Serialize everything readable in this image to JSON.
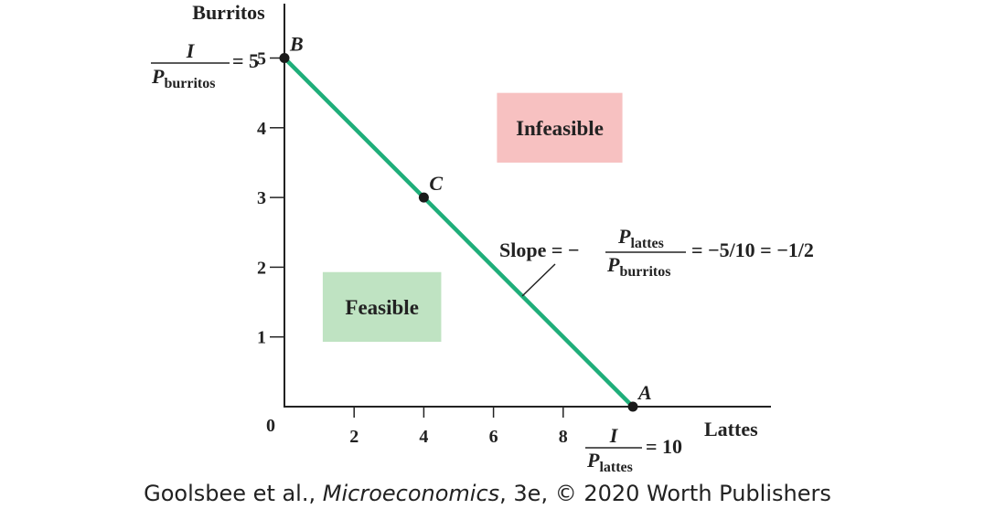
{
  "chart_data": {
    "type": "line",
    "title": "",
    "xlabel": "Lattes",
    "ylabel": "Burritos",
    "xlim": [
      0,
      14
    ],
    "ylim": [
      0,
      5.8
    ],
    "origin_label": "0",
    "x_ticks": [
      2,
      4,
      6,
      8
    ],
    "y_ticks": [
      1,
      2,
      3,
      4,
      5
    ],
    "series": [
      {
        "x": [
          0,
          10
        ],
        "y": [
          5,
          0
        ],
        "color": "#1fae7a"
      }
    ],
    "points": [
      {
        "label": "B",
        "x": 0,
        "y": 5
      },
      {
        "label": "C",
        "x": 4,
        "y": 3
      },
      {
        "label": "A",
        "x": 10,
        "y": 0
      }
    ],
    "regions": [
      {
        "label": "Feasible",
        "color": "#bfe3c2",
        "x": [
          1.1,
          4.5
        ],
        "y": [
          0.93,
          1.93
        ]
      },
      {
        "label": "Infeasible",
        "color": "#f7c1c1",
        "x": [
          6.1,
          9.7
        ],
        "y": [
          3.5,
          4.5
        ]
      }
    ],
    "annotations": {
      "y_intercept": {
        "numerator": "I",
        "denom_main": "P",
        "denom_sub": "burritos",
        "equals": "= 5"
      },
      "x_intercept": {
        "numerator": "I",
        "denom_main": "P",
        "denom_sub": "lattes",
        "equals": "= 10"
      },
      "slope": {
        "prefix": "Slope = −",
        "num_main": "P",
        "num_sub": "lattes",
        "den_main": "P",
        "den_sub": "burritos",
        "suffix": "= −5/10 = −1/2"
      }
    }
  },
  "credit": {
    "pre": "Goolsbee et al., ",
    "title": "Microeconomics",
    "post": ", 3e, © 2020 Worth Publishers"
  }
}
